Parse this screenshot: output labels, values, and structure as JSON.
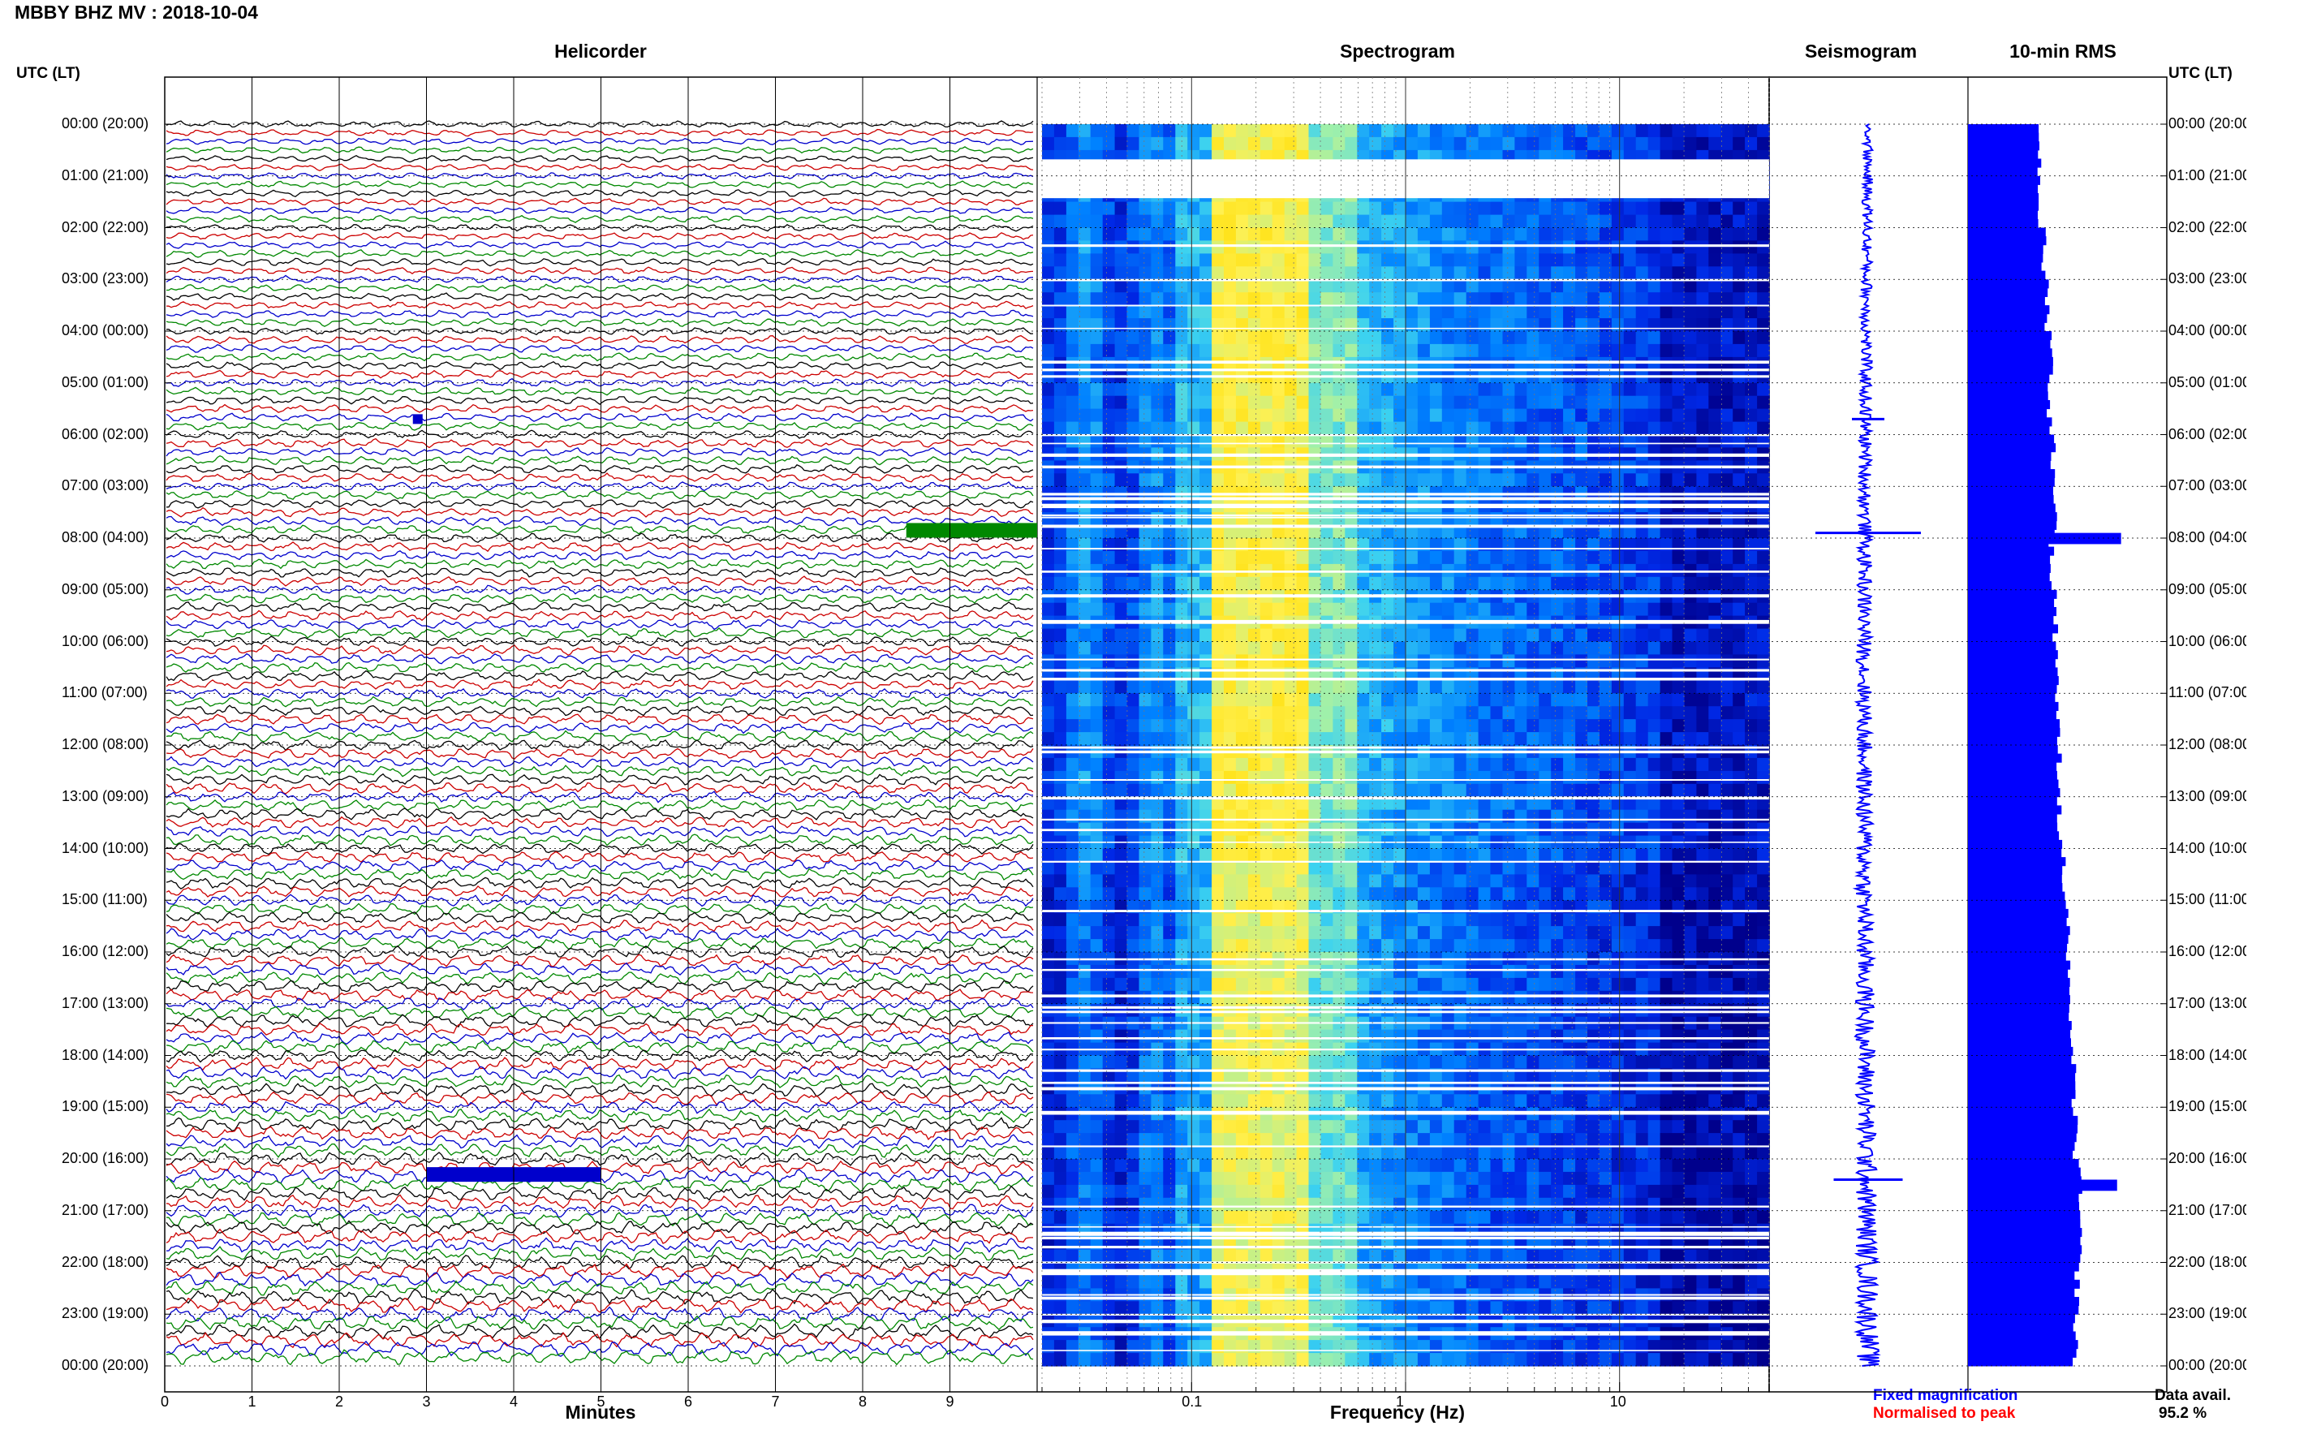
{
  "title": "MBBY BHZ MV : 2018-10-04",
  "panels": {
    "helicorder": "Helicorder",
    "spectrogram": "Spectrogram",
    "seismogram": "Seismogram",
    "rms": "10-min RMS"
  },
  "axis_header_left": "UTC (LT)",
  "axis_header_right": "UTC (LT)",
  "xlabel_minutes": "Minutes",
  "xlabel_frequency": "Frequency (Hz)",
  "legend": {
    "fixed": "Fixed magnification",
    "fixed_color": "#0000ff",
    "normalised": "Normalised to peak",
    "normalised_color": "#ff0000"
  },
  "data_avail": {
    "label": "Data avail.",
    "value": "95.2 %"
  },
  "trace_colors": [
    "#000000",
    "#cc0000",
    "#0000cc",
    "#008800"
  ],
  "chart_data": [
    {
      "type": "line",
      "name": "Helicorder",
      "xlabel": "Minutes",
      "xlim": [
        0,
        10
      ],
      "x_ticks": [
        0,
        1,
        2,
        3,
        4,
        5,
        6,
        7,
        8,
        9
      ],
      "y_ticks_utc": [
        "00:00 (20:00)",
        "01:00 (21:00)",
        "02:00 (22:00)",
        "03:00 (23:00)",
        "04:00 (00:00)",
        "05:00 (01:00)",
        "06:00 (02:00)",
        "07:00 (03:00)",
        "08:00 (04:00)",
        "09:00 (05:00)",
        "10:00 (06:00)",
        "11:00 (07:00)",
        "12:00 (08:00)",
        "13:00 (09:00)",
        "14:00 (10:00)",
        "15:00 (11:00)",
        "16:00 (12:00)",
        "17:00 (13:00)",
        "18:00 (14:00)",
        "19:00 (15:00)",
        "20:00 (16:00)",
        "21:00 (17:00)",
        "22:00 (18:00)",
        "23:00 (19:00)",
        "00:00 (20:00)"
      ],
      "lines_per_hour": 6,
      "events": [
        {
          "hour": 5.7,
          "minute": 2.9,
          "color": "blue"
        },
        {
          "hour": 7.85,
          "minute_start": 8.5,
          "minute_end": 10,
          "color": "green"
        },
        {
          "hour": 20.3,
          "minute_start": 3.0,
          "minute_end": 5.0,
          "color": "blue"
        }
      ]
    },
    {
      "type": "heatmap",
      "name": "Spectrogram",
      "xlabel": "Frequency (Hz)",
      "x_scale": "log",
      "xlim": [
        0.02,
        50
      ],
      "x_ticks": [
        0.1,
        1,
        10
      ],
      "x_ticklabels": [
        "0.1",
        "1",
        "10"
      ],
      "y_range_hours": [
        0,
        24
      ],
      "peak_band_hz": [
        0.12,
        0.35
      ]
    },
    {
      "type": "line",
      "name": "Seismogram",
      "spikes_hours": [
        5.7,
        7.9,
        20.4
      ]
    },
    {
      "type": "bar",
      "name": "10-min RMS",
      "orientation": "horizontal",
      "hourly_relative_values": [
        0.36,
        0.36,
        0.38,
        0.4,
        0.42,
        0.41,
        0.43,
        0.44,
        0.42,
        0.44,
        0.45,
        0.45,
        0.46,
        0.46,
        0.48,
        0.5,
        0.5,
        0.52,
        0.53,
        0.54,
        0.56,
        0.56,
        0.55,
        0.54
      ],
      "peaks": [
        {
          "hour": 7.9,
          "value": 0.77
        },
        {
          "hour": 20.4,
          "value": 0.75
        }
      ]
    }
  ]
}
